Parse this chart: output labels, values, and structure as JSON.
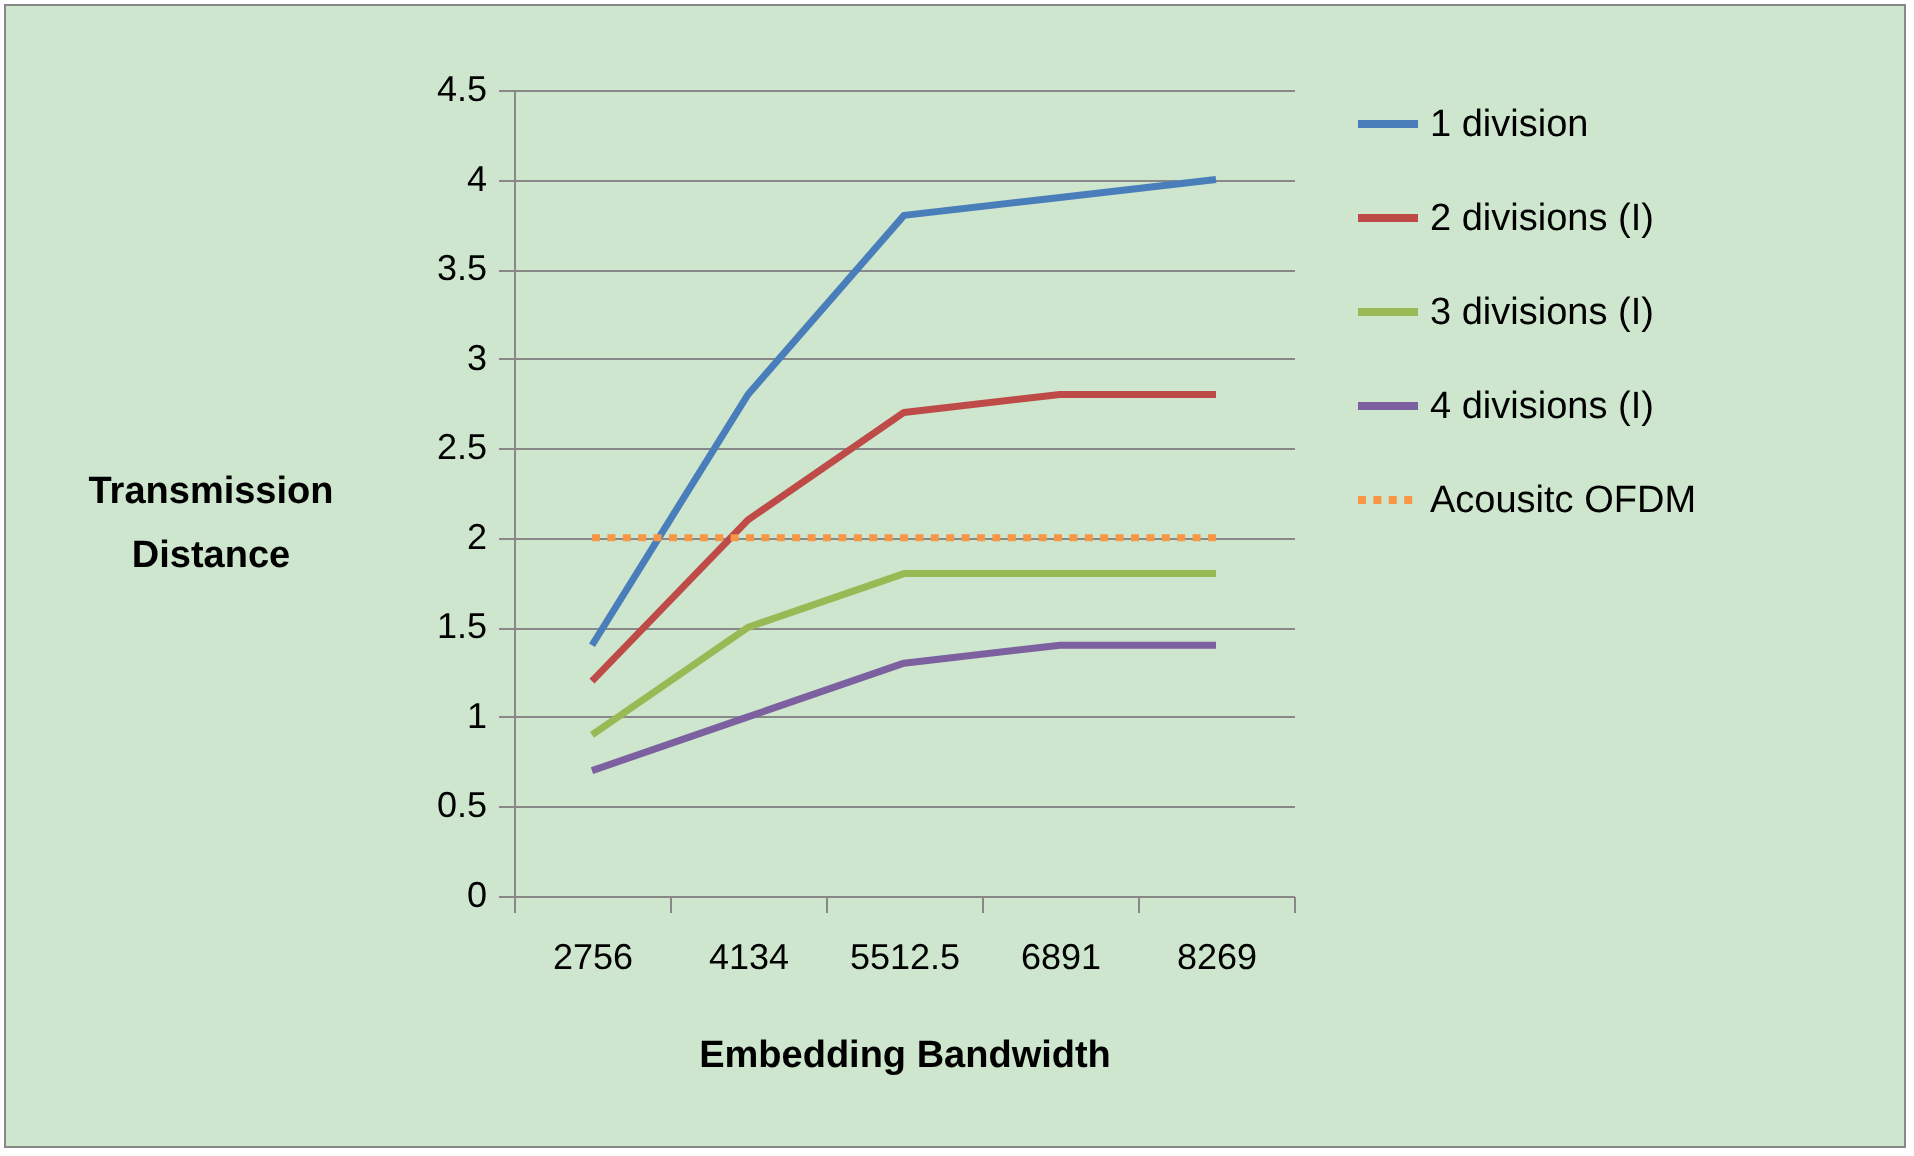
{
  "chart_data": {
    "type": "line",
    "xlabel": "Embedding Bandwidth",
    "ylabel": "Transmission Distance",
    "categories": [
      "2756",
      "4134",
      "5512.5",
      "6891",
      "8269"
    ],
    "series": [
      {
        "name": "1 division",
        "color": "#4a7ebb",
        "values": [
          1.4,
          2.8,
          3.8,
          3.9,
          4.0
        ]
      },
      {
        "name": "2 divisions (I)",
        "color": "#be4b48",
        "values": [
          1.2,
          2.1,
          2.7,
          2.8,
          2.8
        ]
      },
      {
        "name": "3 divisions (I)",
        "color": "#98b954",
        "values": [
          0.9,
          1.5,
          1.8,
          1.8,
          1.8
        ]
      },
      {
        "name": "4 divisions (I)",
        "color": "#7d60a0",
        "values": [
          0.7,
          1.0,
          1.3,
          1.4,
          1.4
        ]
      },
      {
        "name": "Acousitc OFDM",
        "color": "#f79646",
        "line_style": "dotted",
        "values": [
          2,
          2,
          2,
          2,
          2
        ]
      }
    ],
    "ylim": [
      0,
      4.5
    ],
    "yticks": [
      0,
      0.5,
      1,
      1.5,
      2,
      2.5,
      3,
      3.5,
      4,
      4.5
    ],
    "grid": "y",
    "legend": "right",
    "marker": "none",
    "line_style": "solid"
  }
}
